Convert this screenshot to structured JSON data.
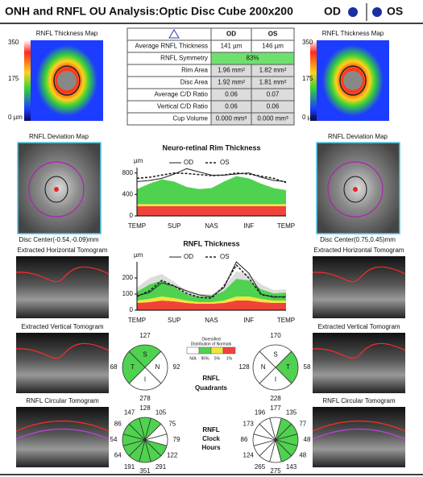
{
  "header": {
    "title": "ONH and RNFL OU Analysis:Optic Disc Cube 200x200",
    "od": "OD",
    "os": "OS",
    "eye_color": "#1a2fa0"
  },
  "panels": {
    "thickness_map": "RNFL Thickness Map",
    "scale": [
      "350",
      "175",
      "0 µm"
    ],
    "deviation_map": "RNFL Deviation Map",
    "od_disc_center": "Disc Center(-0.54,-0.09)mm",
    "os_disc_center": "Disc Center(0.75,0.45)mm",
    "horizontal": "Extracted Horizontal Tomogram",
    "vertical": "Extracted Vertical Tomogram",
    "circular": "RNFL Circular Tomogram"
  },
  "table": {
    "header": [
      "OD",
      "OS"
    ],
    "highlight_color": "#6ee06e",
    "rows": [
      [
        "Average RNFL Thickness",
        "141 µm",
        "146 µm"
      ],
      [
        "RNFL Symmetry",
        "83%"
      ],
      [
        "Rim Area",
        "1.96 mm²",
        "1.82 mm²"
      ],
      [
        "Disc Area",
        "1.92 mm²",
        "1.81 mm²"
      ],
      [
        "Average C/D Ratio",
        "0.06",
        "0.07"
      ],
      [
        "Vertical C/D Ratio",
        "0.06",
        "0.06"
      ],
      [
        "Cup Volume",
        "0.000 mm³",
        "0.000 mm³"
      ]
    ]
  },
  "rim_chart": {
    "title": "Neuro-retinal Rim Thickness",
    "y_unit": "µm",
    "ylim": [
      0,
      900
    ],
    "yticks": [
      0,
      400,
      800
    ],
    "xlabels": [
      "TEMP",
      "SUP",
      "NAS",
      "INF",
      "TEMP"
    ],
    "bands": [
      {
        "color": "#f0433a",
        "values": [
          180,
          180,
          180,
          180,
          180,
          180,
          180,
          180,
          180,
          180,
          180,
          180,
          180
        ]
      },
      {
        "color": "#f5e43a",
        "values": [
          40,
          40,
          40,
          40,
          40,
          40,
          40,
          40,
          40,
          40,
          40,
          40,
          40
        ]
      },
      {
        "color": "#4fd24f",
        "values": [
          280,
          380,
          460,
          420,
          320,
          280,
          300,
          420,
          520,
          480,
          380,
          300,
          260
        ]
      }
    ],
    "series": [
      {
        "name": "OD",
        "color": "#222222",
        "dash": false,
        "values": [
          640,
          660,
          700,
          780,
          880,
          820,
          760,
          760,
          780,
          800,
          720,
          660,
          640
        ]
      },
      {
        "name": "OS",
        "color": "#222222",
        "dash": true,
        "values": [
          700,
          720,
          760,
          800,
          790,
          770,
          750,
          760,
          800,
          780,
          740,
          700,
          620
        ]
      }
    ]
  },
  "rnfl_chart": {
    "title": "RNFL Thickness",
    "y_unit": "µm",
    "ylim": [
      0,
      300
    ],
    "yticks": [
      0,
      100,
      200
    ],
    "xlabels": [
      "TEMP",
      "SUP",
      "NAS",
      "INF",
      "TEMP"
    ],
    "bands": [
      {
        "color": "#f0433a",
        "values": [
          45,
          50,
          60,
          55,
          45,
          40,
          40,
          45,
          60,
          60,
          50,
          45,
          45
        ]
      },
      {
        "color": "#f5e43a",
        "values": [
          15,
          20,
          25,
          20,
          15,
          10,
          10,
          15,
          25,
          25,
          20,
          15,
          15
        ]
      },
      {
        "color": "#4fd24f",
        "values": [
          55,
          90,
          100,
          70,
          40,
          35,
          35,
          60,
          110,
          100,
          60,
          45,
          50
        ]
      },
      {
        "color": "#dddddd",
        "values": [
          25,
          40,
          40,
          30,
          20,
          15,
          15,
          25,
          45,
          40,
          30,
          20,
          20
        ]
      }
    ],
    "series": [
      {
        "name": "OD",
        "color": "#222222",
        "dash": false,
        "values": [
          90,
          110,
          170,
          150,
          120,
          95,
          85,
          140,
          300,
          230,
          100,
          80,
          85
        ]
      },
      {
        "name": "OS",
        "color": "#222222",
        "dash": true,
        "values": [
          85,
          120,
          185,
          150,
          105,
          80,
          75,
          150,
          280,
          200,
          95,
          85,
          80
        ]
      }
    ]
  },
  "legend": {
    "title": [
      "Diversified",
      "Distribution of Normals"
    ],
    "colors": [
      "#ffffff",
      "#4fd24f",
      "#f5e43a",
      "#f0433a"
    ],
    "labels": [
      "N/A",
      "95%",
      "5%",
      "1%"
    ]
  },
  "quadrants": {
    "title": [
      "RNFL",
      "Quadrants"
    ],
    "od": {
      "labels": [
        "S",
        "N",
        "I",
        "T"
      ],
      "values": [
        127,
        92,
        278,
        68
      ],
      "colors": [
        "#4fd24f",
        "#ffffff",
        "#ffffff",
        "#4fd24f"
      ]
    },
    "os": {
      "labels": [
        "S",
        "T",
        "I",
        "N"
      ],
      "values": [
        170,
        58,
        228,
        128
      ],
      "colors": [
        "#ffffff",
        "#4fd24f",
        "#ffffff",
        "#ffffff"
      ]
    }
  },
  "clock_hours": {
    "title": [
      "RNFL",
      "Clock",
      "Hours"
    ],
    "od": {
      "values": [
        128,
        105,
        75,
        79,
        122,
        291,
        351,
        191,
        64,
        54,
        86,
        147
      ],
      "colors": [
        "#4fd24f",
        "#4fd24f",
        "#ffffff",
        "#ffffff",
        "#4fd24f",
        "#4fd24f",
        "#4fd24f",
        "#4fd24f",
        "#4fd24f",
        "#4fd24f",
        "#4fd24f",
        "#4fd24f"
      ]
    },
    "os": {
      "values": [
        177,
        135,
        77,
        48,
        48,
        143,
        275,
        265,
        124,
        86,
        173,
        196
      ],
      "colors": [
        "#ffffff",
        "#4fd24f",
        "#4fd24f",
        "#4fd24f",
        "#4fd24f",
        "#4fd24f",
        "#ffffff",
        "#ffffff",
        "#ffffff",
        "#ffffff",
        "#ffffff",
        "#ffffff"
      ]
    }
  }
}
